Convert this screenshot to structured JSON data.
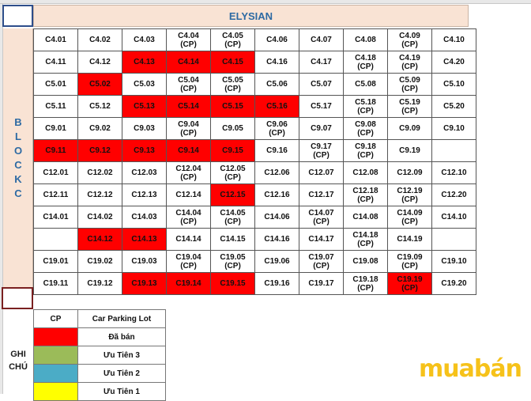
{
  "sheet": {
    "title": "ELYSIAN",
    "block_letters": [
      "B",
      "L",
      "O",
      "C",
      "K",
      "",
      "C"
    ],
    "ghi_chu": "GHI CHÚ"
  },
  "grid": {
    "rows": [
      [
        {
          "t": "C4.01"
        },
        {
          "t": "C4.02"
        },
        {
          "t": "C4.03"
        },
        {
          "t": "C4.04\n(CP)"
        },
        {
          "t": "C4.05\n(CP)"
        },
        {
          "t": "C4.06"
        },
        {
          "t": "C4.07"
        },
        {
          "t": "C4.08"
        },
        {
          "t": "C4.09\n(CP)"
        },
        {
          "t": "C4.10"
        }
      ],
      [
        {
          "t": "C4.11"
        },
        {
          "t": "C4.12"
        },
        {
          "t": "C4.13",
          "s": 1
        },
        {
          "t": "C4.14",
          "s": 1
        },
        {
          "t": "C4.15",
          "s": 1
        },
        {
          "t": "C4.16"
        },
        {
          "t": "C4.17"
        },
        {
          "t": "C4.18\n(CP)"
        },
        {
          "t": "C4.19\n(CP)"
        },
        {
          "t": "C4.20"
        }
      ],
      [
        {
          "t": "C5.01"
        },
        {
          "t": "C5.02",
          "s": 1
        },
        {
          "t": "C5.03"
        },
        {
          "t": "C5.04\n(CP)"
        },
        {
          "t": "C5.05\n(CP)"
        },
        {
          "t": "C5.06"
        },
        {
          "t": "C5.07"
        },
        {
          "t": "C5.08"
        },
        {
          "t": "C5.09\n(CP)"
        },
        {
          "t": "C5.10"
        }
      ],
      [
        {
          "t": "C5.11"
        },
        {
          "t": "C5.12"
        },
        {
          "t": "C5.13",
          "s": 1
        },
        {
          "t": "C5.14",
          "s": 1
        },
        {
          "t": "C5.15",
          "s": 1
        },
        {
          "t": "C5.16",
          "s": 1
        },
        {
          "t": "C5.17"
        },
        {
          "t": "C5.18\n(CP)"
        },
        {
          "t": "C5.19\n(CP)"
        },
        {
          "t": "C5.20"
        }
      ],
      [
        {
          "t": "C9.01"
        },
        {
          "t": "C9.02"
        },
        {
          "t": "C9.03"
        },
        {
          "t": "C9.04\n(CP)"
        },
        {
          "t": "C9.05"
        },
        {
          "t": "C9.06\n(CP)"
        },
        {
          "t": "C9.07"
        },
        {
          "t": "C9.08\n(CP)"
        },
        {
          "t": "C9.09"
        },
        {
          "t": "C9.10"
        }
      ],
      [
        {
          "t": "C9.11",
          "s": 1
        },
        {
          "t": "C9.12",
          "s": 1
        },
        {
          "t": "C9.13",
          "s": 1
        },
        {
          "t": "C9.14",
          "s": 1
        },
        {
          "t": "C9.15",
          "s": 1
        },
        {
          "t": "C9.16"
        },
        {
          "t": "C9.17\n(CP)"
        },
        {
          "t": "C9.18\n(CP)"
        },
        {
          "t": "C9.19"
        },
        {
          "t": ""
        }
      ],
      [
        {
          "t": "C12.01"
        },
        {
          "t": "C12.02"
        },
        {
          "t": "C12.03"
        },
        {
          "t": "C12.04\n(CP)"
        },
        {
          "t": "C12.05\n(CP)"
        },
        {
          "t": "C12.06"
        },
        {
          "t": "C12.07"
        },
        {
          "t": "C12.08"
        },
        {
          "t": "C12.09"
        },
        {
          "t": "C12.10"
        }
      ],
      [
        {
          "t": "C12.11"
        },
        {
          "t": "C12.12"
        },
        {
          "t": "C12.13"
        },
        {
          "t": "C12.14"
        },
        {
          "t": "C12.15",
          "s": 1
        },
        {
          "t": "C12.16"
        },
        {
          "t": "C12.17"
        },
        {
          "t": "C12.18\n(CP)"
        },
        {
          "t": "C12.19\n(CP)"
        },
        {
          "t": "C12.20"
        }
      ],
      [
        {
          "t": "C14.01"
        },
        {
          "t": "C14.02"
        },
        {
          "t": "C14.03"
        },
        {
          "t": "C14.04\n(CP)"
        },
        {
          "t": "C14.05\n(CP)"
        },
        {
          "t": "C14.06"
        },
        {
          "t": "C14.07\n(CP)"
        },
        {
          "t": "C14.08"
        },
        {
          "t": "C14.09\n(CP)"
        },
        {
          "t": "C14.10"
        }
      ],
      [
        {
          "t": ""
        },
        {
          "t": "C14.12",
          "s": 1
        },
        {
          "t": "C14.13",
          "s": 1
        },
        {
          "t": "C14.14"
        },
        {
          "t": "C14.15"
        },
        {
          "t": "C14.16"
        },
        {
          "t": "C14.17"
        },
        {
          "t": "C14.18\n(CP)"
        },
        {
          "t": "C14.19"
        },
        {
          "t": ""
        }
      ],
      [
        {
          "t": "C19.01"
        },
        {
          "t": "C19.02"
        },
        {
          "t": "C19.03"
        },
        {
          "t": "C19.04\n(CP)"
        },
        {
          "t": "C19.05\n(CP)"
        },
        {
          "t": "C19.06"
        },
        {
          "t": "C19.07\n(CP)"
        },
        {
          "t": "C19.08"
        },
        {
          "t": "C19.09\n(CP)"
        },
        {
          "t": "C19.10"
        }
      ],
      [
        {
          "t": "C19.11"
        },
        {
          "t": "C19.12"
        },
        {
          "t": "C19.13",
          "s": 1
        },
        {
          "t": "C19.14",
          "s": 1
        },
        {
          "t": "C19.15",
          "s": 1
        },
        {
          "t": "C19.16"
        },
        {
          "t": "C19.17"
        },
        {
          "t": "C19.18\n(CP)"
        },
        {
          "t": "C19.19\n(CP)",
          "s": 1
        },
        {
          "t": "C19.20"
        }
      ]
    ]
  },
  "legend": {
    "rows": [
      {
        "key": "CP",
        "label": "Car Parking Lot",
        "color": ""
      },
      {
        "key": "",
        "label": "Đã bán",
        "color": "#ff0000"
      },
      {
        "key": "",
        "label": "Ưu Tiên 3",
        "color": "#9bbb59"
      },
      {
        "key": "",
        "label": "Ưu Tiên 2",
        "color": "#4bacc6"
      },
      {
        "key": "",
        "label": "Ưu Tiên 1",
        "color": "#ffff00"
      }
    ]
  },
  "watermark": {
    "text": "muabán",
    "color": "#f6c21a"
  },
  "colors": {
    "sold": "#ff0000",
    "header_bg": "#f9e3d4",
    "header_text": "#2d6aa3"
  }
}
